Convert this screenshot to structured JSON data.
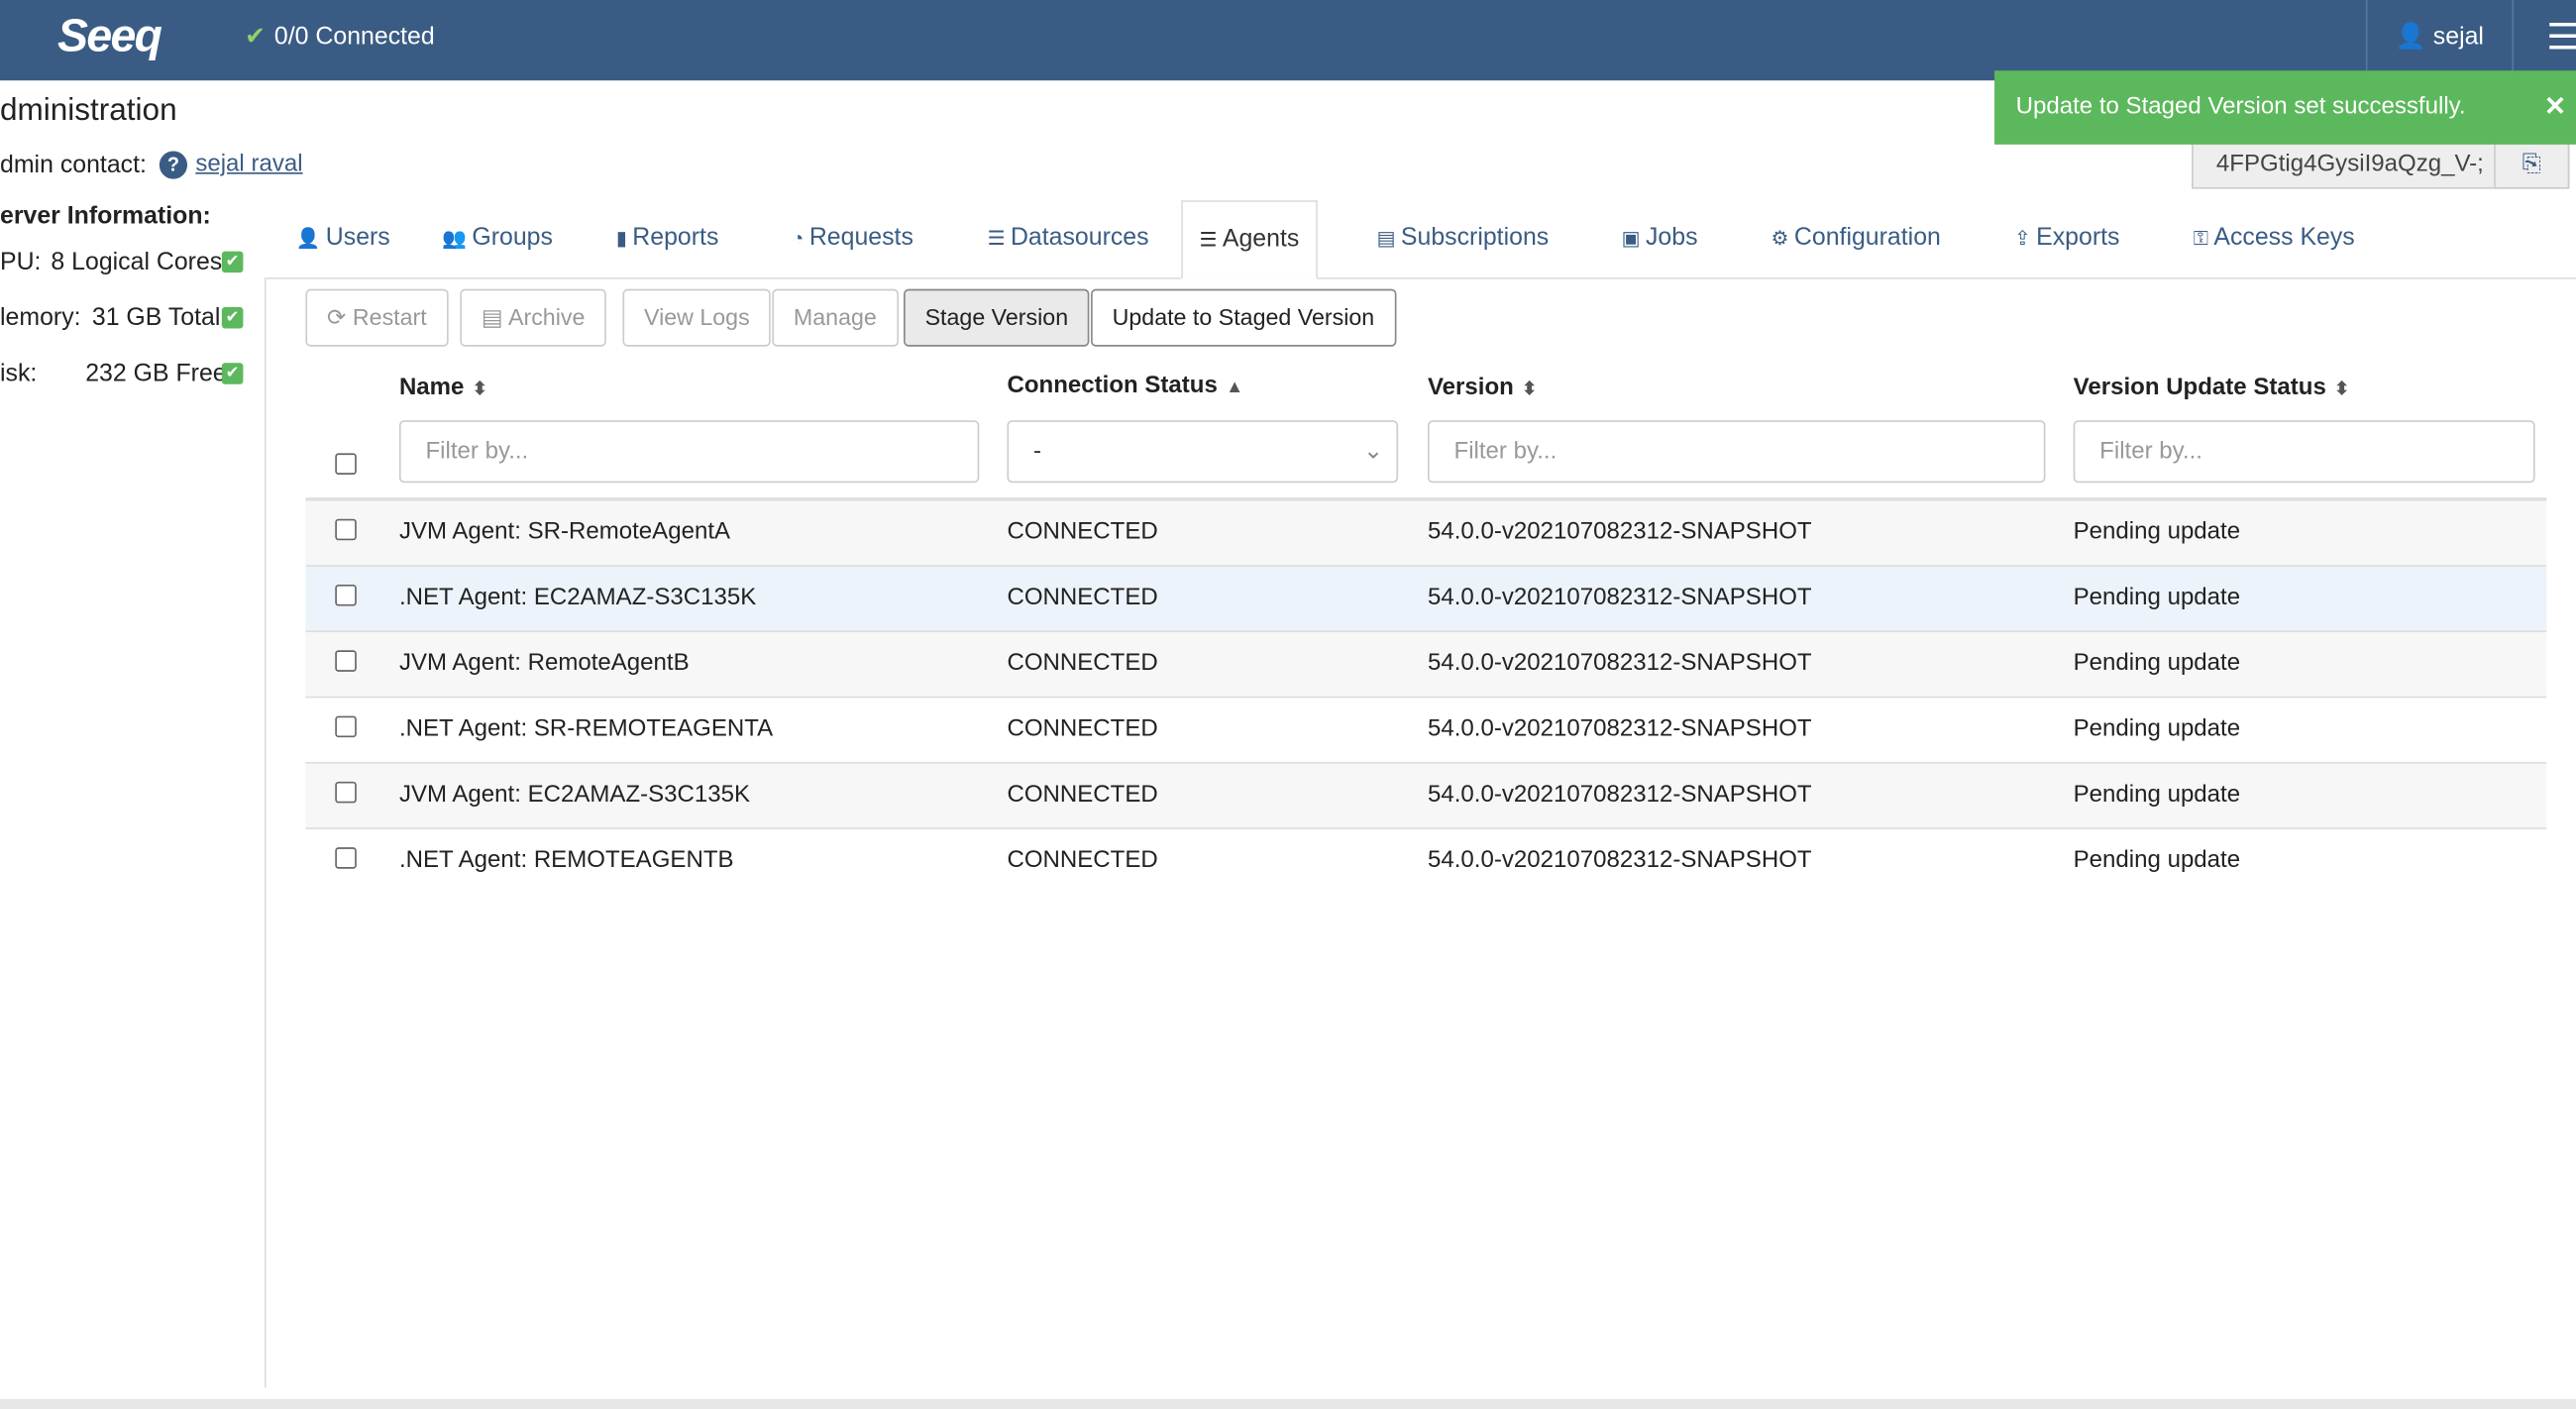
{
  "header": {
    "logo": "Seeq",
    "connection": "0/0 Connected",
    "user": "sejal"
  },
  "toast": "Update to Staged Version set successfully.",
  "token": "4FPGtig4GysiI9aQzg_V-;",
  "sidebar": {
    "title": "dministration",
    "admin_contact_label": "dmin contact:",
    "admin_contact_name": "sejal raval",
    "server_info_label": "erver Information:",
    "items": [
      {
        "label": "PU:",
        "value": "8 Logical Cores"
      },
      {
        "label": "lemory:",
        "value": "31 GB Total"
      },
      {
        "label": "isk:",
        "value": "232 GB Free"
      }
    ]
  },
  "tabs": [
    "Users",
    "Groups",
    "Reports",
    "Requests",
    "Datasources",
    "Agents",
    "Subscriptions",
    "Jobs",
    "Configuration",
    "Exports",
    "Access Keys"
  ],
  "toolbar": [
    "Restart",
    "Archive",
    "View Logs",
    "Manage",
    "Stage Version",
    "Update to Staged Version"
  ],
  "table": {
    "headers": [
      "Name",
      "Connection Status",
      "Version",
      "Version Update Status"
    ],
    "filters": [
      "Filter by...",
      "-",
      "Filter by...",
      "Filter by..."
    ],
    "rows": [
      [
        "JVM Agent: SR-RemoteAgentA",
        "CONNECTED",
        "54.0.0-v202107082312-SNAPSHOT",
        "Pending update"
      ],
      [
        ".NET Agent: EC2AMAZ-S3C135K",
        "CONNECTED",
        "54.0.0-v202107082312-SNAPSHOT",
        "Pending update"
      ],
      [
        "JVM Agent: RemoteAgentB",
        "CONNECTED",
        "54.0.0-v202107082312-SNAPSHOT",
        "Pending update"
      ],
      [
        ".NET Agent: SR-REMOTEAGENTA",
        "CONNECTED",
        "54.0.0-v202107082312-SNAPSHOT",
        "Pending update"
      ],
      [
        "JVM Agent: EC2AMAZ-S3C135K",
        "CONNECTED",
        "54.0.0-v202107082312-SNAPSHOT",
        "Pending update"
      ],
      [
        ".NET Agent: REMOTEAGENTB",
        "CONNECTED",
        "54.0.0-v202107082312-SNAPSHOT",
        "Pending update"
      ]
    ]
  }
}
